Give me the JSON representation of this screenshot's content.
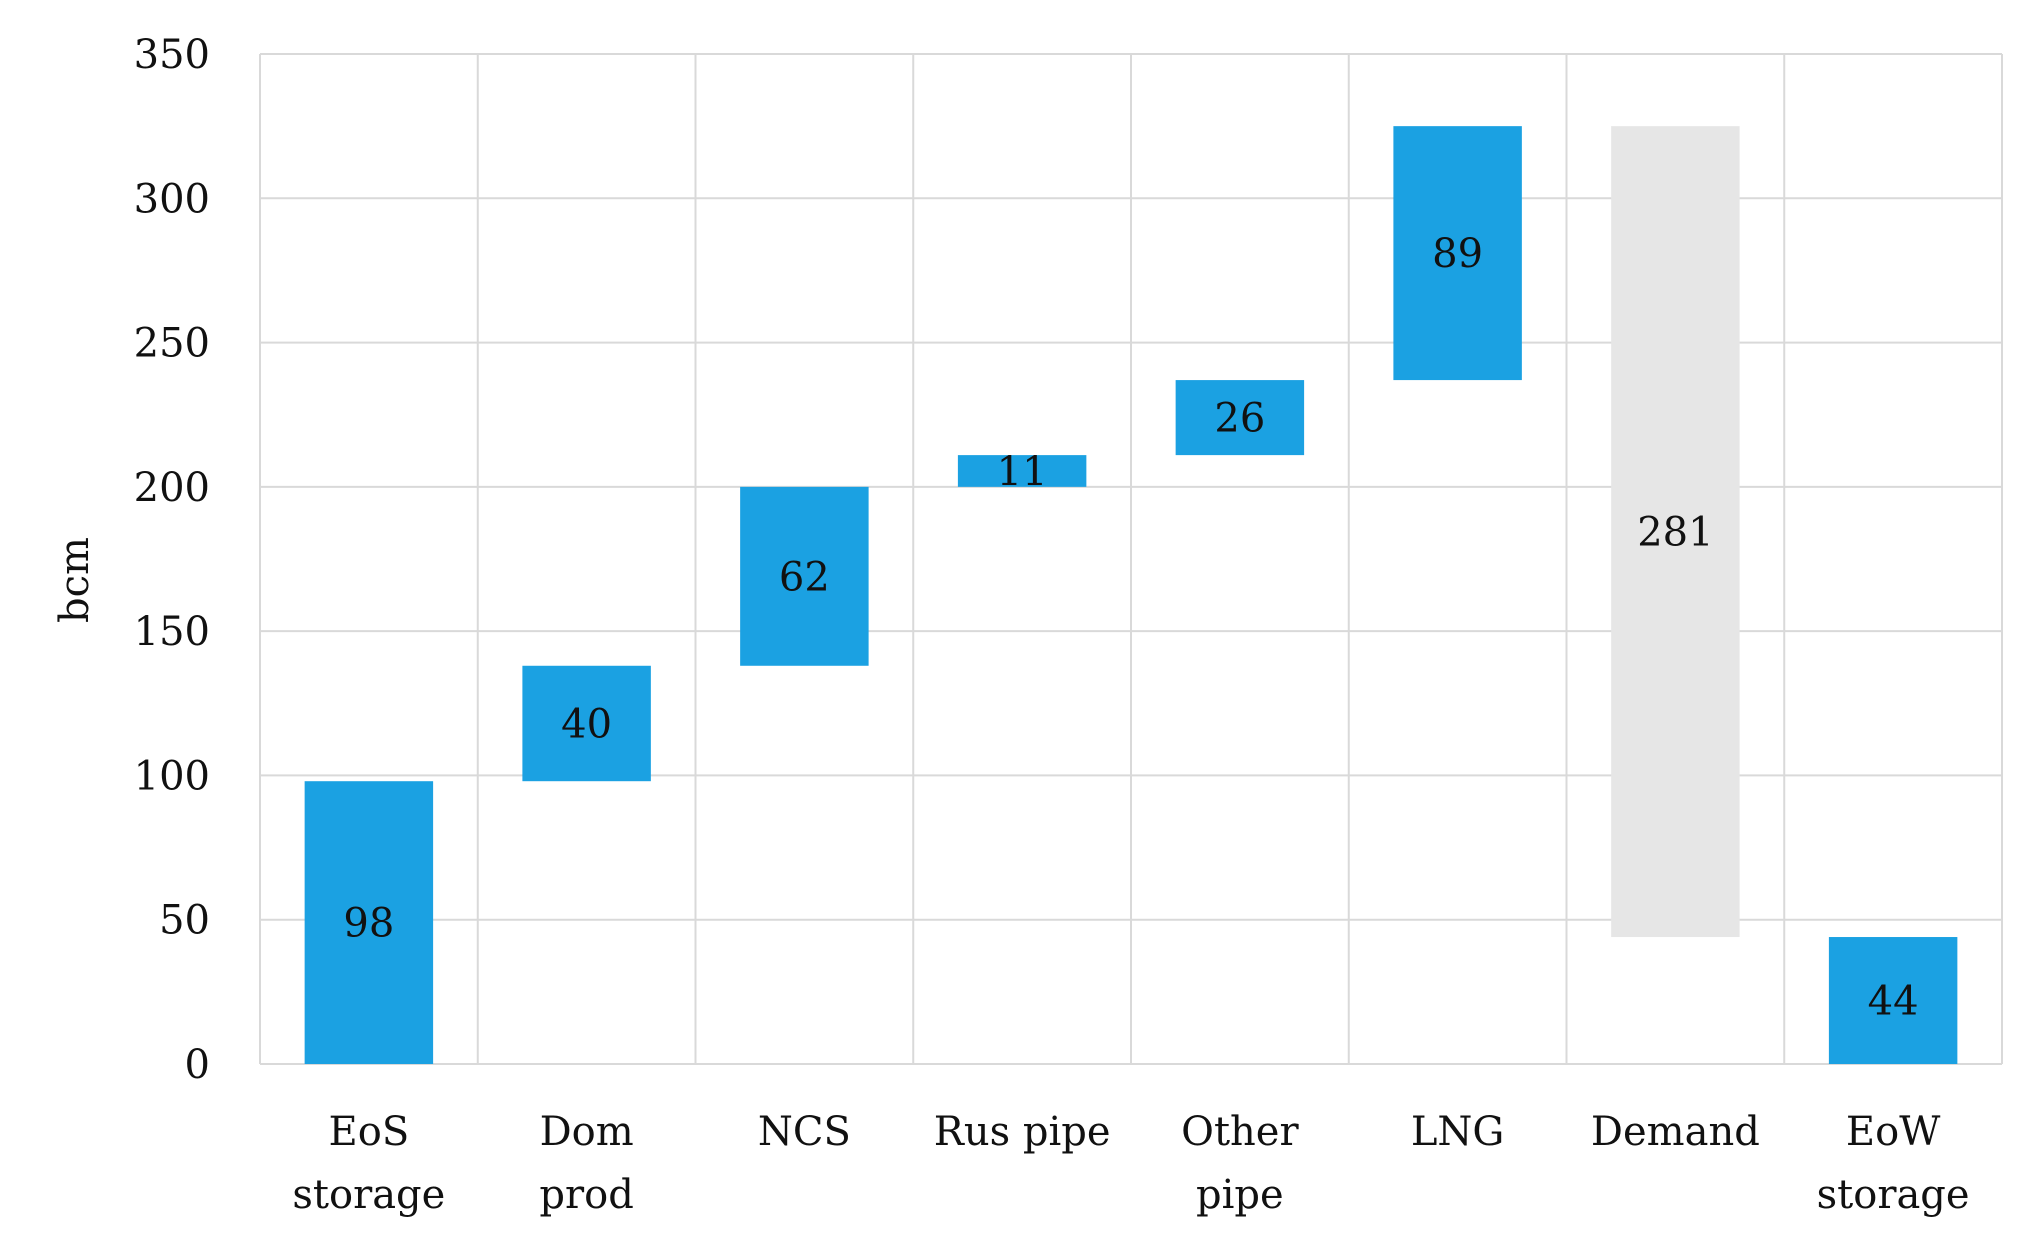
{
  "chart_data": {
    "type": "bar",
    "subtype": "waterfall",
    "title": "",
    "xlabel": "",
    "ylabel": "bcm",
    "ylim": [
      0,
      350
    ],
    "yticks": [
      0,
      50,
      100,
      150,
      200,
      250,
      300,
      350
    ],
    "grid": true,
    "colors": {
      "increase": "#1ba1e2",
      "decrease": "#e6e6e6",
      "grid": "#d9d9d9"
    },
    "categories": [
      [
        "EoS",
        "storage"
      ],
      [
        "Dom",
        "prod"
      ],
      [
        "NCS"
      ],
      [
        "Rus pipe"
      ],
      [
        "Other",
        "pipe"
      ],
      [
        "LNG"
      ],
      [
        "Demand"
      ],
      [
        "EoW",
        "storage"
      ]
    ],
    "bars": [
      {
        "label": "98",
        "base": 0,
        "top": 98,
        "kind": "increase"
      },
      {
        "label": "40",
        "base": 98,
        "top": 138,
        "kind": "increase"
      },
      {
        "label": "62",
        "base": 138,
        "top": 200,
        "kind": "increase"
      },
      {
        "label": "11",
        "base": 200,
        "top": 211,
        "kind": "increase"
      },
      {
        "label": "26",
        "base": 211,
        "top": 237,
        "kind": "increase"
      },
      {
        "label": "89",
        "base": 237,
        "top": 325,
        "kind": "increase"
      },
      {
        "label": "281",
        "base": 44,
        "top": 325,
        "kind": "decrease"
      },
      {
        "label": "44",
        "base": 0,
        "top": 44,
        "kind": "increase"
      }
    ]
  }
}
